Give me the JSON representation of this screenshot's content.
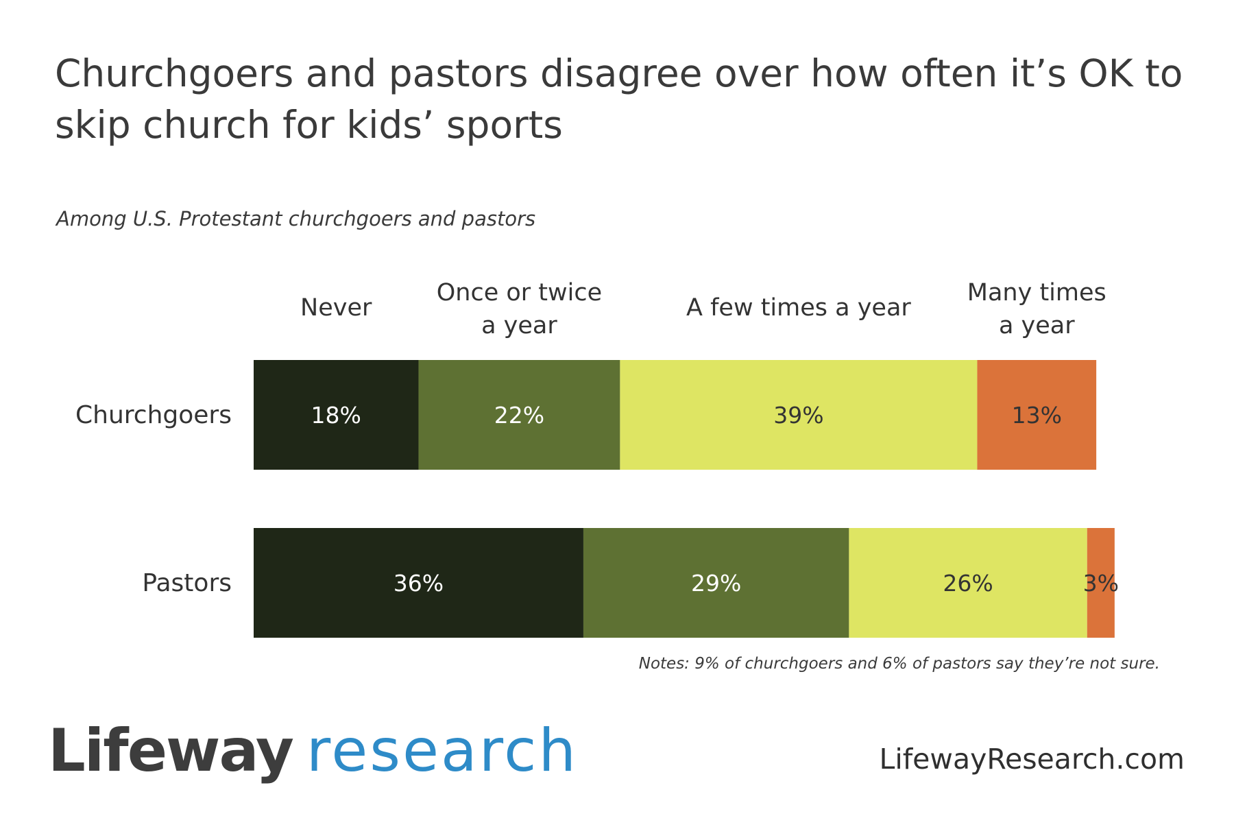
{
  "title": "Churchgoers and pastors disagree over how often it’s OK to skip church for kids’ sports",
  "subtitle": "Among U.S. Protestant churchgoers and pastors",
  "note": "Notes: 9% of churchgoers and 6% of pastors say they’re not sure.",
  "logo": {
    "brand": "Lifeway",
    "word": "research"
  },
  "url": "LifewayResearch.com",
  "chart_data": {
    "type": "bar",
    "orientation": "horizontal",
    "stacked": true,
    "categories": [
      "Churchgoers",
      "Pastors"
    ],
    "series": [
      {
        "name": "Never",
        "values": [
          18,
          36
        ],
        "labels": [
          "18%",
          "36%"
        ],
        "color": "#1f2717"
      },
      {
        "name": "Once or twice a year",
        "values": [
          22,
          29
        ],
        "labels": [
          "22%",
          "29%"
        ],
        "color": "#5e7133"
      },
      {
        "name": "A few times a year",
        "values": [
          39,
          26
        ],
        "labels": [
          "39%",
          "26%"
        ],
        "color": "#dee563"
      },
      {
        "name": "Many times a year",
        "values": [
          13,
          3
        ],
        "labels": [
          "13%",
          "3%"
        ],
        "color": "#db733a"
      }
    ],
    "header_lines": [
      [
        "Never"
      ],
      [
        "Once or twice",
        "a year"
      ],
      [
        "A few times a year"
      ],
      [
        "Many times",
        "a year"
      ]
    ],
    "label_colors": [
      "#ffffff",
      "#ffffff",
      "#333333",
      "#333333"
    ],
    "xlim": [
      0,
      100
    ],
    "grid": false,
    "legend": "column headers above bars"
  }
}
